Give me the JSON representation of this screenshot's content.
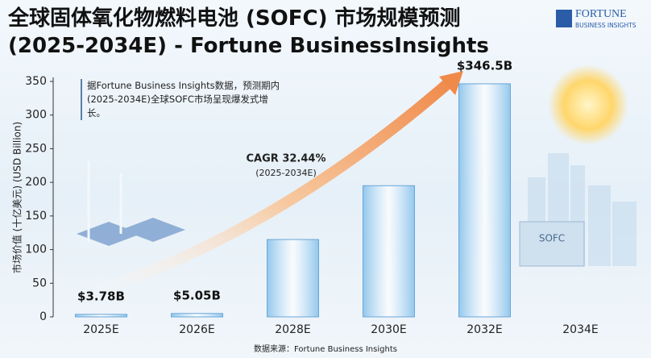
{
  "chart_data": {
    "type": "bar",
    "title": "全球固体氧化物燃料电池 (SOFC) 市场规模预测 (2025-2034E) - Fortune BusinessInsights",
    "y_axis_label": "市场价值 (十亿美元) (USD Billion)",
    "annotation": "据Fortune Business Insights数据，预测期内(2025-2034E)全球SOFC市场呈现爆发式增长。",
    "cagr": "CAGR 32.44%",
    "cagr_period": "(2025-2034E)",
    "source": "数据来源：Fortune Business Insights",
    "illustration_label": "SOFC",
    "categories": [
      "2025E",
      "2026E",
      "2028E",
      "2030E",
      "2032E",
      "2034E"
    ],
    "values": [
      3.78,
      5.05,
      115,
      195,
      346.5,
      null
    ],
    "value_labels": [
      "$3.78B",
      "$5.05B",
      null,
      null,
      "$346.5B",
      null
    ],
    "color": "#8ec5ec",
    "ylim": [
      0,
      350
    ],
    "yticks": [
      0,
      50,
      100,
      150,
      200,
      250,
      300,
      350
    ],
    "grid": false
  },
  "logo": {
    "name": "FORTUNE",
    "subtitle": "BUSINESS INSIGHTS"
  }
}
